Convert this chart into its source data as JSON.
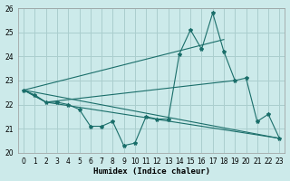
{
  "xlabel": "Humidex (Indice chaleur)",
  "xlim": [
    -0.5,
    23.5
  ],
  "ylim": [
    20,
    26
  ],
  "yticks": [
    20,
    21,
    22,
    23,
    24,
    25,
    26
  ],
  "xticks": [
    0,
    1,
    2,
    3,
    4,
    5,
    6,
    7,
    8,
    9,
    10,
    11,
    12,
    13,
    14,
    15,
    16,
    17,
    18,
    19,
    20,
    21,
    22,
    23
  ],
  "bg_color": "#cceaea",
  "grid_color": "#aacece",
  "line_color": "#1a6e6a",
  "series_main": {
    "x": [
      0,
      1,
      2,
      3,
      4,
      5,
      6,
      7,
      8,
      9,
      10,
      11,
      12,
      13,
      14,
      15,
      16,
      17,
      18,
      19,
      20,
      21,
      22,
      23
    ],
    "y": [
      22.6,
      22.4,
      22.1,
      22.1,
      22.0,
      21.8,
      21.1,
      21.1,
      21.3,
      20.3,
      20.4,
      21.5,
      21.4,
      21.4,
      24.1,
      25.1,
      24.3,
      25.8,
      24.2,
      23.0,
      23.1,
      21.3,
      21.6,
      20.6
    ]
  },
  "line_upper": {
    "x": [
      0,
      18
    ],
    "y": [
      22.6,
      24.7
    ]
  },
  "line_lower": {
    "x": [
      0,
      23
    ],
    "y": [
      22.6,
      20.6
    ]
  },
  "line_mid_upper": {
    "x": [
      0,
      2,
      19
    ],
    "y": [
      22.6,
      22.1,
      23.0
    ]
  },
  "line_mid_lower": {
    "x": [
      0,
      2,
      23
    ],
    "y": [
      22.6,
      22.1,
      20.6
    ]
  }
}
